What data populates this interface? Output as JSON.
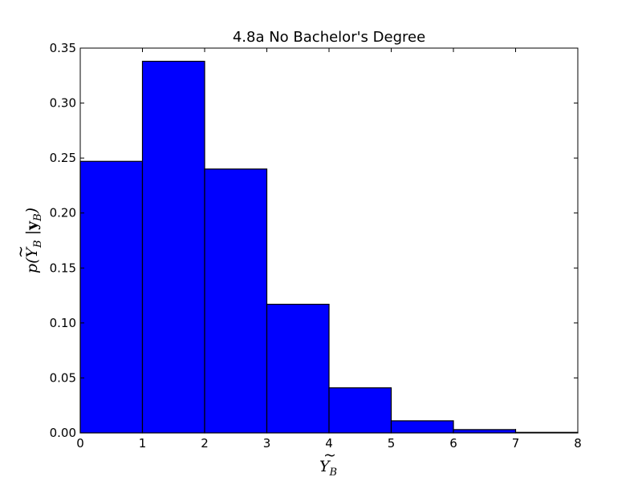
{
  "chart_data": {
    "type": "bar",
    "title": "4.8a  No Bachelor's Degree",
    "xlabel": "Ỹ_B",
    "ylabel": "p(Ỹ_B |y_B)",
    "bin_edges": [
      0,
      1,
      2,
      3,
      4,
      5,
      6,
      7,
      8
    ],
    "values": [
      0.247,
      0.338,
      0.24,
      0.117,
      0.041,
      0.011,
      0.003,
      0.0005
    ],
    "xlim": [
      0,
      8
    ],
    "ylim": [
      0,
      0.35
    ],
    "xticks": [
      0,
      1,
      2,
      3,
      4,
      5,
      6,
      7,
      8
    ],
    "xtick_labels": [
      "0",
      "1",
      "2",
      "3",
      "4",
      "5",
      "6",
      "7",
      "8"
    ],
    "yticks": [
      0,
      0.05,
      0.1,
      0.15,
      0.2,
      0.25,
      0.3,
      0.35
    ],
    "ytick_labels": [
      "0.00",
      "0.05",
      "0.10",
      "0.15",
      "0.20",
      "0.25",
      "0.30",
      "0.35"
    ],
    "bar_color": "#0000ff",
    "edge_color": "#000000",
    "grid": false
  }
}
